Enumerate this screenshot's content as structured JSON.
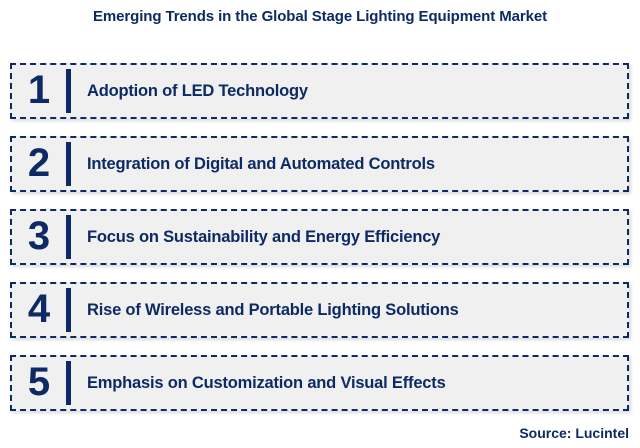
{
  "title": "Emerging Trends in the Global Stage Lighting Equipment Market",
  "source": "Source: Lucintel",
  "colors": {
    "navy": "#0d2a64",
    "box_bg": "#f0f0f0",
    "page_bg": "#ffffff"
  },
  "trends": [
    {
      "number": "1",
      "label": "Adoption of LED Technology"
    },
    {
      "number": "2",
      "label": "Integration of Digital and Automated Controls"
    },
    {
      "number": "3",
      "label": "Focus on Sustainability and Energy Efficiency"
    },
    {
      "number": "4",
      "label": "Rise of Wireless and Portable Lighting Solutions"
    },
    {
      "number": "5",
      "label": "Emphasis on Customization and Visual Effects"
    }
  ]
}
